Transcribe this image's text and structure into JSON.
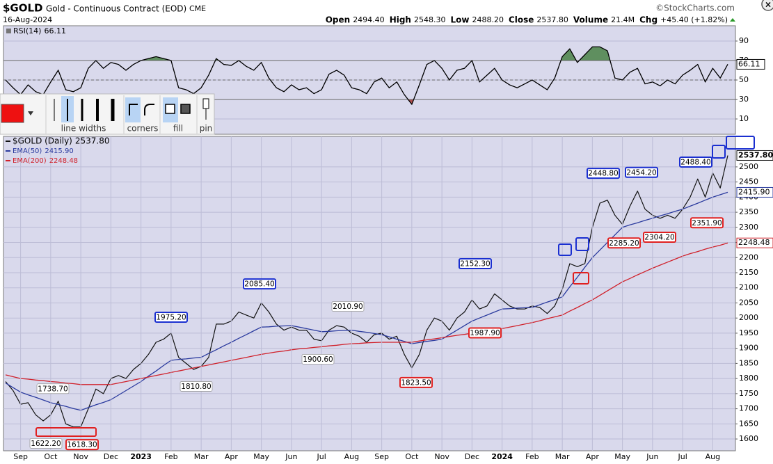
{
  "header": {
    "symbol": "$GOLD",
    "description": "Gold - Continuous Contract (EOD)",
    "exchange": "CME",
    "copyright": "©StockCharts.com",
    "date": "16-Aug-2024",
    "quote": [
      {
        "name": "Open",
        "label": "2494.40"
      },
      {
        "name": "High",
        "label": "2548.30"
      },
      {
        "name": "Low",
        "label": "2488.20"
      },
      {
        "name": "Close",
        "label": "2537.80"
      },
      {
        "name": "Volume",
        "label": "21.4M"
      },
      {
        "name": "Chg",
        "label": "+45.40 (+1.82%)"
      }
    ]
  },
  "toolbar": {
    "labels": [
      "line widths",
      "corners",
      "fill",
      "pin"
    ]
  },
  "chart_data": [
    {
      "type": "line",
      "ylim": [
        -5.7,
        105.7
      ],
      "yticks": [
        10,
        30,
        50,
        70,
        90
      ],
      "overbought": 70,
      "oversold": 30,
      "midline": 50,
      "grid": true,
      "series": [
        {
          "name": "RSI(14)",
          "color": "#000000",
          "last_label": "66.11",
          "values": [
            50,
            42,
            35,
            45,
            38,
            35,
            48,
            60,
            40,
            38,
            42,
            62,
            70,
            62,
            68,
            66,
            60,
            66,
            70,
            72,
            74,
            72,
            70,
            42,
            40,
            36,
            42,
            55,
            72,
            66,
            65,
            70,
            64,
            60,
            68,
            52,
            42,
            38,
            45,
            40,
            42,
            36,
            40,
            56,
            60,
            55,
            42,
            40,
            36,
            48,
            52,
            42,
            48,
            35,
            25,
            45,
            66,
            70,
            62,
            50,
            60,
            62,
            70,
            48,
            55,
            62,
            50,
            45,
            42,
            46,
            50,
            45,
            40,
            52,
            74,
            82,
            68,
            76,
            84,
            84,
            80,
            52,
            50,
            58,
            62,
            46,
            48,
            44,
            50,
            46,
            55,
            60,
            66,
            48,
            62,
            52,
            66.11
          ]
        }
      ]
    },
    {
      "type": "line",
      "ylim": [
        1561,
        2601
      ],
      "yticks": [
        1600,
        1650,
        1700,
        1750,
        1800,
        1850,
        1900,
        1950,
        2000,
        2050,
        2100,
        2150,
        2200,
        2250,
        2300,
        2350,
        2400,
        2450,
        2500
      ],
      "grid": true,
      "categories": [
        null,
        null,
        "Sep",
        null,
        null,
        null,
        "Oct",
        null,
        null,
        null,
        "Nov",
        null,
        null,
        null,
        "Dec",
        null,
        null,
        null,
        "2023",
        null,
        null,
        null,
        "Feb",
        null,
        null,
        null,
        "Mar",
        null,
        null,
        null,
        "Apr",
        null,
        null,
        null,
        "May",
        null,
        null,
        null,
        "Jun",
        null,
        null,
        null,
        "Jul",
        null,
        null,
        null,
        "Aug",
        null,
        null,
        null,
        "Sep",
        null,
        null,
        null,
        "Oct",
        null,
        null,
        null,
        "Nov",
        null,
        null,
        null,
        "Dec",
        null,
        null,
        null,
        "2024",
        null,
        null,
        null,
        "Feb",
        null,
        null,
        null,
        "Mar",
        null,
        null,
        null,
        "Apr",
        null,
        null,
        null,
        "May",
        null,
        null,
        null,
        "Jun",
        null,
        null,
        null,
        "Jul",
        null,
        null,
        null,
        "Aug",
        null,
        null
      ],
      "series": [
        {
          "name": "$GOLD (Daily)",
          "color": "#111111",
          "last_label": "2537.80",
          "values": [
            1790,
            1760,
            1715,
            1720,
            1680,
            1660,
            1680,
            1725,
            1650,
            1640,
            1640,
            1700,
            1765,
            1750,
            1800,
            1810,
            1800,
            1830,
            1850,
            1880,
            1920,
            1930,
            1950,
            1870,
            1850,
            1830,
            1840,
            1870,
            1980,
            1980,
            1990,
            2020,
            2010,
            2000,
            2050,
            2020,
            1980,
            1960,
            1970,
            1960,
            1960,
            1930,
            1925,
            1960,
            1975,
            1970,
            1950,
            1940,
            1920,
            1945,
            1950,
            1930,
            1940,
            1880,
            1835,
            1880,
            1960,
            2000,
            1990,
            1960,
            2000,
            2020,
            2060,
            2030,
            2040,
            2080,
            2060,
            2040,
            2030,
            2030,
            2040,
            2035,
            2015,
            2040,
            2095,
            2180,
            2170,
            2180,
            2300,
            2380,
            2390,
            2340,
            2310,
            2370,
            2420,
            2360,
            2340,
            2330,
            2340,
            2330,
            2360,
            2400,
            2460,
            2400,
            2480,
            2430,
            2537.8
          ]
        },
        {
          "name": "EMA(50)",
          "color": "#2a3a9e",
          "last_label": "2415.90",
          "values": [
            1785,
            1770,
            1755,
            1746,
            1738,
            1729,
            1720,
            1714,
            1708,
            1701,
            1695,
            1704,
            1713,
            1721,
            1730,
            1745,
            1760,
            1775,
            1790,
            1808,
            1825,
            1843,
            1860,
            1863,
            1865,
            1868,
            1870,
            1883,
            1895,
            1908,
            1920,
            1933,
            1945,
            1958,
            1970,
            1971,
            1973,
            1974,
            1975,
            1970,
            1965,
            1960,
            1955,
            1956,
            1958,
            1959,
            1960,
            1956,
            1953,
            1949,
            1945,
            1938,
            1930,
            1923,
            1915,
            1919,
            1923,
            1926,
            1930,
            1945,
            1960,
            1975,
            1990,
            2000,
            2010,
            2020,
            2030,
            2031,
            2033,
            2034,
            2035,
            2044,
            2053,
            2061,
            2070,
            2103,
            2135,
            2168,
            2200,
            2225,
            2250,
            2275,
            2300,
            2308,
            2315,
            2323,
            2330,
            2338,
            2345,
            2353,
            2360,
            2370,
            2380,
            2390,
            2400,
            2408,
            2415.9
          ]
        },
        {
          "name": "EMA(200)",
          "color": "#d0202a",
          "last_label": "2248.48",
          "values": [
            1812,
            1806,
            1800,
            1798,
            1795,
            1793,
            1790,
            1788,
            1785,
            1783,
            1780,
            1780,
            1780,
            1780,
            1780,
            1785,
            1790,
            1795,
            1800,
            1805,
            1810,
            1815,
            1820,
            1825,
            1830,
            1835,
            1840,
            1845,
            1850,
            1855,
            1860,
            1865,
            1870,
            1875,
            1880,
            1884,
            1888,
            1891,
            1895,
            1898,
            1900,
            1903,
            1905,
            1908,
            1910,
            1913,
            1915,
            1916,
            1918,
            1919,
            1920,
            1920,
            1920,
            1920,
            1920,
            1924,
            1928,
            1931,
            1935,
            1939,
            1943,
            1946,
            1950,
            1954,
            1958,
            1961,
            1965,
            1970,
            1975,
            1980,
            1985,
            1991,
            1998,
            2004,
            2010,
            2023,
            2035,
            2048,
            2060,
            2075,
            2090,
            2105,
            2120,
            2131,
            2143,
            2154,
            2165,
            2175,
            2185,
            2195,
            2205,
            2213,
            2220,
            2228,
            2235,
            2241,
            2248.48
          ]
        }
      ],
      "annotations": [
        {
          "value": 1738.7,
          "label": "1738.70"
        },
        {
          "value": 1622.2,
          "label": "1622.20"
        },
        {
          "value": 1618.3,
          "label": "1618.30"
        },
        {
          "value": 1975.2,
          "label": "1975.20"
        },
        {
          "value": 1810.8,
          "label": "1810.80"
        },
        {
          "value": 2085.4,
          "label": "2085.40"
        },
        {
          "value": 1900.6,
          "label": "1900.60"
        },
        {
          "value": 2010.9,
          "label": "2010.90"
        },
        {
          "value": 1823.5,
          "label": "1823.50"
        },
        {
          "value": 2152.3,
          "label": "2152.30"
        },
        {
          "value": 1987.9,
          "label": "1987.90"
        },
        {
          "value": 2448.8,
          "label": "2448.80"
        },
        {
          "value": 2285.2,
          "label": "2285.20"
        },
        {
          "value": 2454.2,
          "label": "2454.20"
        },
        {
          "value": 2304.2,
          "label": "2304.20"
        },
        {
          "value": 2488.4,
          "label": "2488.40"
        },
        {
          "value": 2351.9,
          "label": "2351.90"
        }
      ]
    }
  ]
}
